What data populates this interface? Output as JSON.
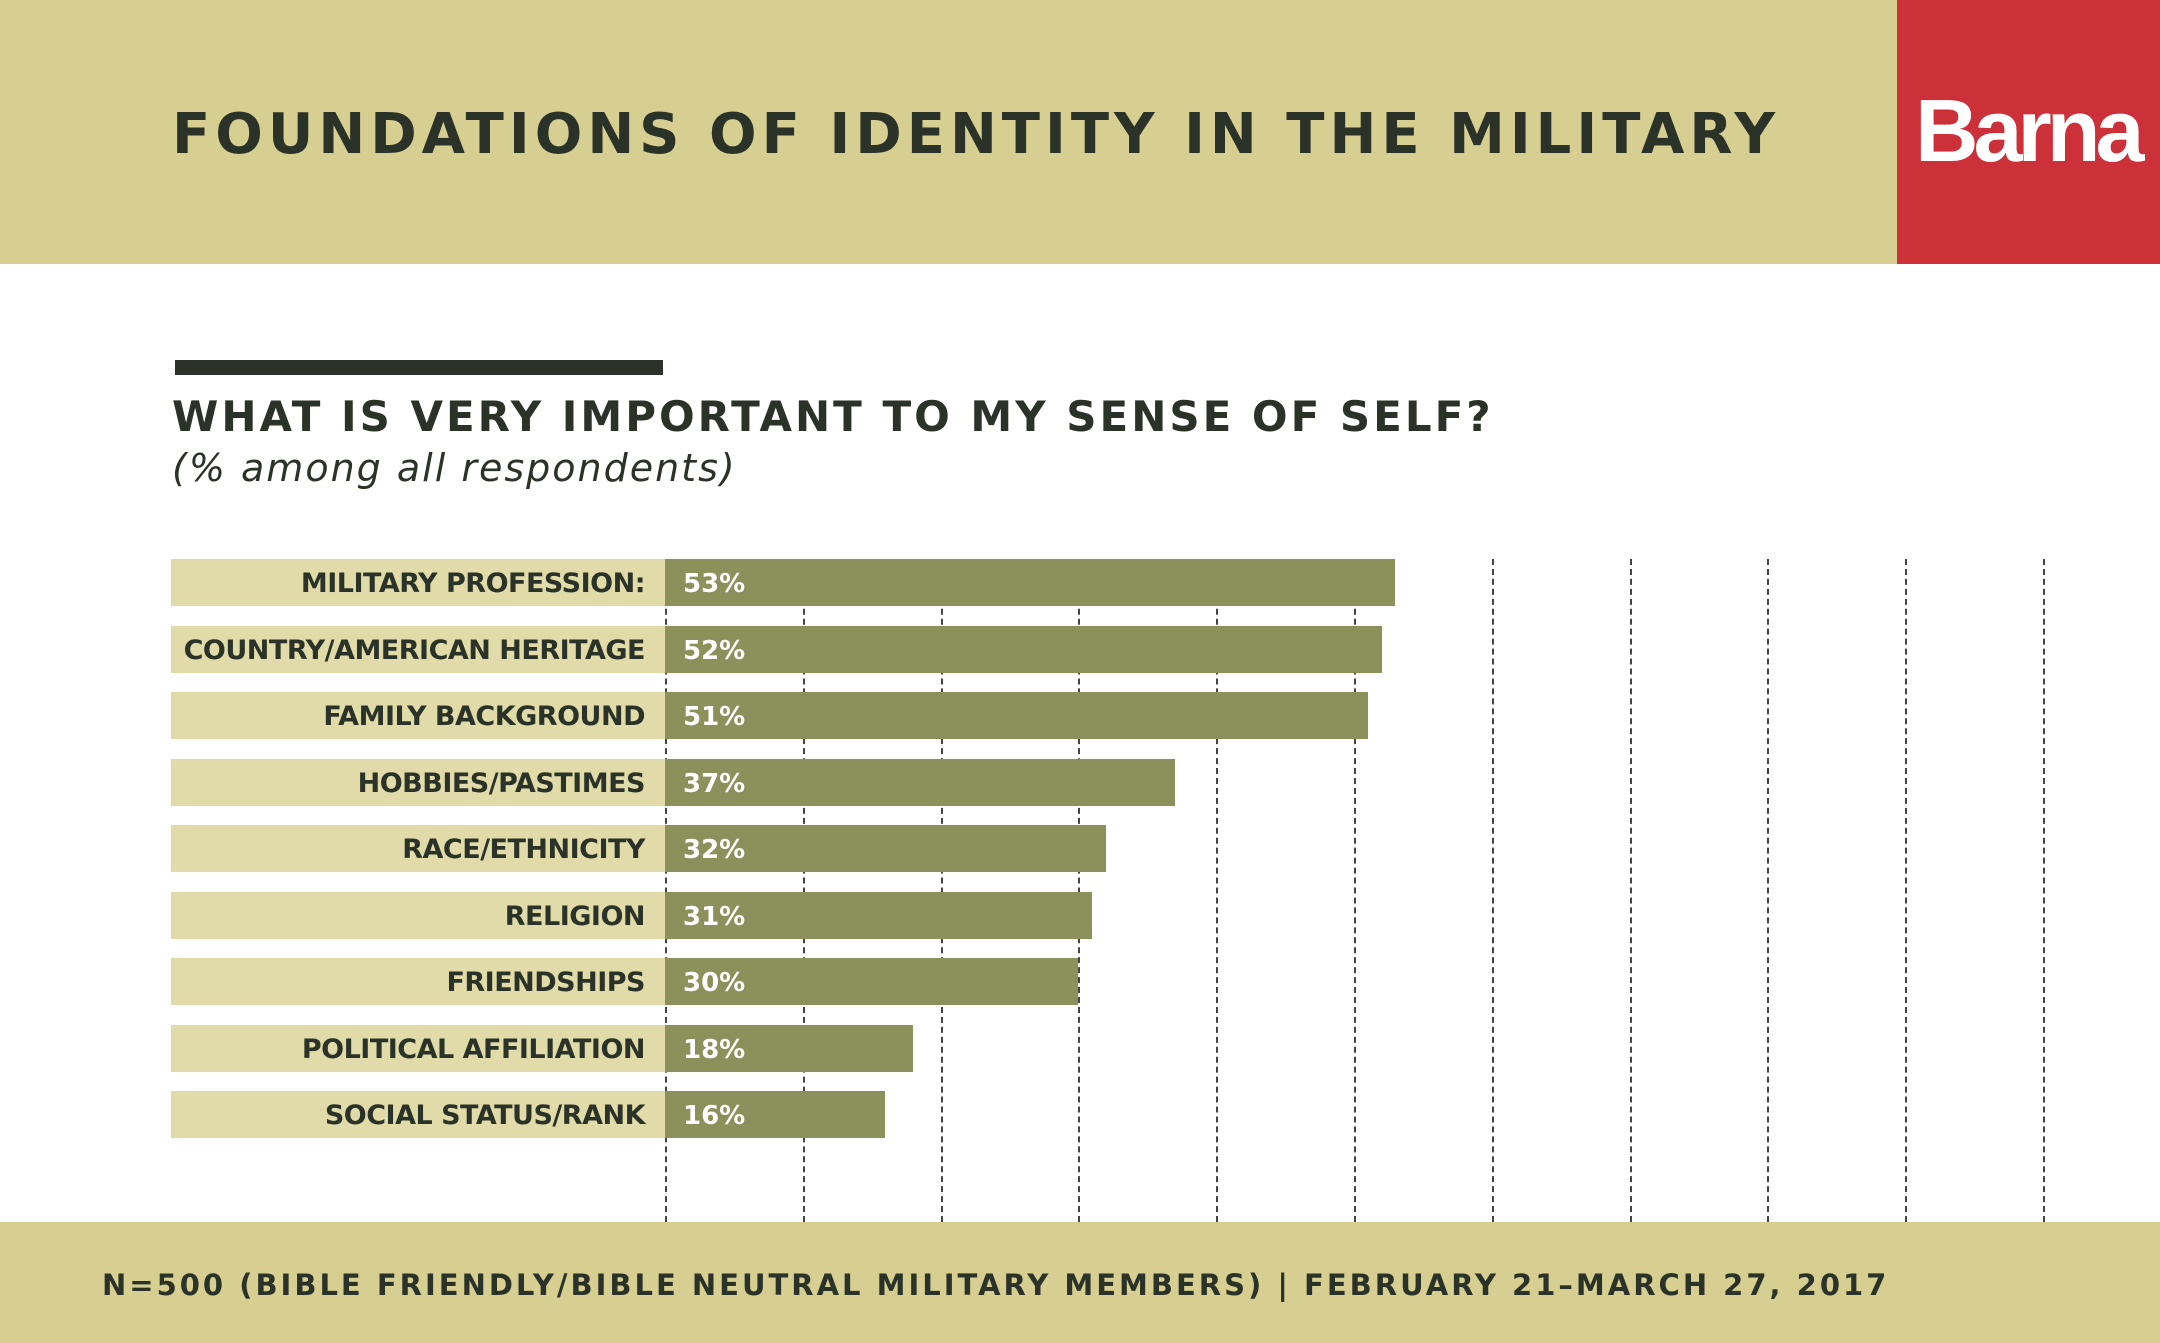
{
  "header": {
    "title": "FOUNDATIONS OF IDENTITY IN THE MILITARY",
    "logo": "Barna"
  },
  "colors": {
    "header_bg": "#d6cf91",
    "logo_bg": "#cc3038",
    "label_bg": "#e0dba8",
    "bar": "#8c915c",
    "text": "#2b3328"
  },
  "chart_data": {
    "type": "bar",
    "orientation": "horizontal",
    "title": "WHAT IS VERY IMPORTANT TO MY SENSE OF SELF?",
    "subtitle": "(% among all respondents)",
    "categories": [
      "MILITARY PROFESSION:",
      "COUNTRY/AMERICAN HERITAGE",
      "FAMILY BACKGROUND",
      "HOBBIES/PASTIMES",
      "RACE/ETHNICITY",
      "RELIGION",
      "FRIENDSHIPS",
      "POLITICAL AFFILIATION",
      "SOCIAL STATUS/RANK"
    ],
    "values": [
      53,
      52,
      51,
      37,
      32,
      31,
      30,
      18,
      16
    ],
    "labels": [
      "53%",
      "52%",
      "51%",
      "37%",
      "32%",
      "31%",
      "30%",
      "18%",
      "16%"
    ],
    "xlim": [
      0,
      100
    ],
    "grid": true,
    "grid_step": 10
  },
  "footer": {
    "text": "N=500 (BIBLE FRIENDLY/BIBLE NEUTRAL MILITARY MEMBERS) | FEBRUARY 21–MARCH 27, 2017"
  }
}
